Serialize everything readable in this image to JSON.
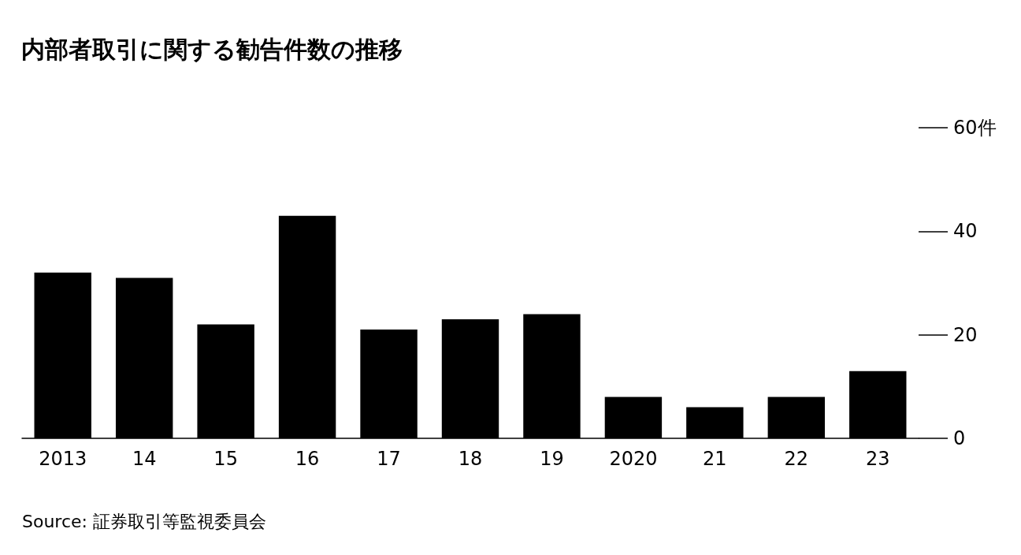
{
  "chart_data": {
    "type": "bar",
    "title": "内部者取引に関する勧告件数の推移",
    "categories": [
      "2013",
      "14",
      "15",
      "16",
      "17",
      "18",
      "19",
      "2020",
      "21",
      "22",
      "23"
    ],
    "values": [
      32,
      31,
      22,
      43,
      21,
      23,
      24,
      8,
      6,
      8,
      13
    ],
    "color": "#000000",
    "ylim": [
      0,
      60
    ],
    "yticks": [
      0,
      20,
      40,
      {
        "value": 60,
        "label": "60件"
      }
    ],
    "grid": false,
    "annotations": [
      "Source: 証券取引等監視委員会"
    ]
  }
}
